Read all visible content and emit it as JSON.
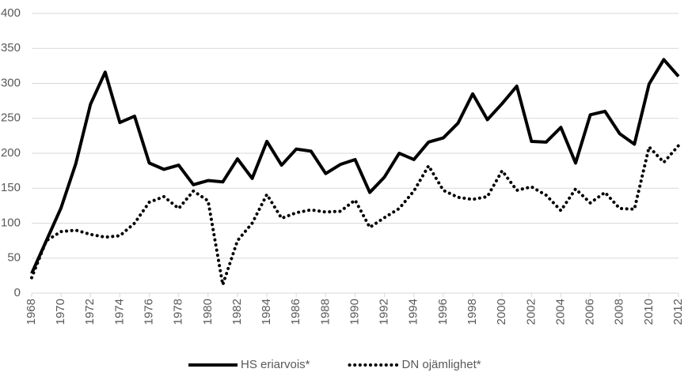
{
  "chart_data": {
    "type": "line",
    "x": [
      1968,
      1969,
      1970,
      1971,
      1972,
      1973,
      1974,
      1975,
      1976,
      1977,
      1978,
      1979,
      1980,
      1981,
      1982,
      1983,
      1984,
      1985,
      1986,
      1987,
      1988,
      1989,
      1990,
      1991,
      1992,
      1993,
      1994,
      1995,
      1996,
      1997,
      1998,
      1999,
      2000,
      2001,
      2002,
      2003,
      2004,
      2005,
      2006,
      2007,
      2008,
      2009,
      2010,
      2011,
      2012
    ],
    "xlim": [
      1968,
      2012
    ],
    "xticks": [
      1968,
      1970,
      1972,
      1974,
      1976,
      1978,
      1980,
      1982,
      1984,
      1986,
      1988,
      1990,
      1992,
      1994,
      1996,
      1998,
      2000,
      2002,
      2004,
      2006,
      2008,
      2010,
      2012
    ],
    "ylim": [
      0,
      400
    ],
    "yticks": [
      0,
      50,
      100,
      150,
      200,
      250,
      300,
      350,
      400
    ],
    "grid": true,
    "legend": "bottom",
    "series": [
      {
        "name": "HS eriarvois*",
        "color": "#000000",
        "style": "solid",
        "values": [
          28,
          75,
          122,
          185,
          270,
          316,
          244,
          253,
          186,
          177,
          183,
          155,
          161,
          159,
          192,
          164,
          217,
          183,
          206,
          203,
          171,
          184,
          191,
          144,
          166,
          200,
          191,
          216,
          222,
          243,
          285,
          248,
          271,
          296,
          217,
          216,
          237,
          186,
          255,
          260,
          228,
          213,
          299,
          334,
          310
        ]
      },
      {
        "name": "DN ojämlighet*",
        "color": "#000000",
        "style": "dotted",
        "values": [
          22,
          75,
          88,
          90,
          84,
          80,
          82,
          100,
          130,
          138,
          121,
          146,
          132,
          12,
          75,
          100,
          141,
          107,
          115,
          119,
          116,
          117,
          133,
          94,
          108,
          121,
          146,
          182,
          147,
          137,
          134,
          138,
          175,
          147,
          152,
          140,
          118,
          149,
          129,
          144,
          121,
          120,
          209,
          187,
          211
        ]
      }
    ]
  }
}
